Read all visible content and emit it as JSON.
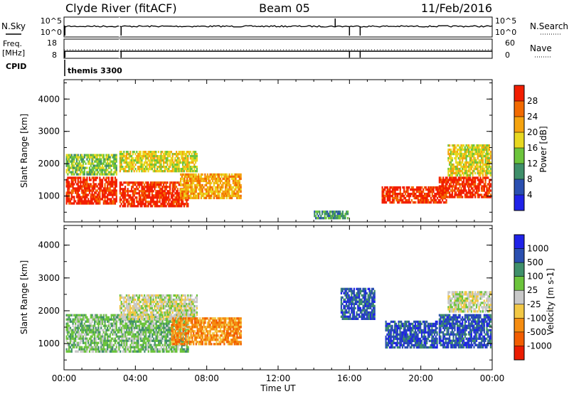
{
  "header": {
    "station": "Clyde River (fitACF)",
    "beam": "Beam 05",
    "date": "11/Feb/2016"
  },
  "strip_nsky": {
    "left_label": "N.Sky",
    "right_label": "N.Search",
    "left_tick_top": "10^5",
    "left_tick_bottom": "10^0",
    "right_tick_top": "10^5",
    "right_tick_bottom": "10^0"
  },
  "strip_freq": {
    "left_label_1": "Freq.",
    "left_label_2": "[MHz]",
    "right_label": "Nave",
    "left_tick_top": "18",
    "left_tick_bottom": "8",
    "right_tick_top": "60",
    "right_tick_bottom": "0"
  },
  "strip_cpid": {
    "left_label": "CPID",
    "annotation": "themis 3300"
  },
  "time_axis": {
    "label": "Time UT",
    "ticks": [
      "00:00",
      "04:00",
      "08:00",
      "12:00",
      "16:00",
      "20:00",
      "00:00"
    ]
  },
  "colors": {
    "power_scale": [
      "#1f22e8",
      "#2a4fb0",
      "#3f8f6a",
      "#6cc43c",
      "#e8d820",
      "#f5a30f",
      "#f26a00",
      "#f21e00"
    ],
    "velocity_scale": [
      "#ea1c00",
      "#f25d00",
      "#f58c10",
      "#f2c845",
      "#c8c8c8",
      "#6cc43c",
      "#3f8f6a",
      "#2a4fb0",
      "#1f22e8"
    ]
  },
  "chart_data": [
    {
      "type": "heatmap",
      "name": "power",
      "ylabel": "Slant Range [km]",
      "xlabel": "",
      "x_range_hours": [
        0,
        24
      ],
      "ylim": [
        200,
        4600
      ],
      "y_ticks": [
        "1000",
        "2000",
        "3000",
        "4000"
      ],
      "colorbar": {
        "label": "Power [dB]",
        "ticks": [
          "4",
          "8",
          "12",
          "16",
          "20",
          "24",
          "28"
        ]
      },
      "regions": [
        {
          "t0": 0.1,
          "t1": 3.0,
          "r0": 700,
          "r1": 1600,
          "value_db": 28
        },
        {
          "t0": 0.1,
          "t1": 3.0,
          "r0": 1600,
          "r1": 2300,
          "value_db": 12
        },
        {
          "t0": 3.1,
          "t1": 7.0,
          "r0": 650,
          "r1": 1450,
          "value_db": 28
        },
        {
          "t0": 3.1,
          "t1": 7.5,
          "r0": 1700,
          "r1": 2400,
          "value_db": 16
        },
        {
          "t0": 6.5,
          "t1": 10.0,
          "r0": 900,
          "r1": 1700,
          "value_db": 20
        },
        {
          "t0": 14.0,
          "t1": 16.0,
          "r0": 250,
          "r1": 550,
          "value_db": 8
        },
        {
          "t0": 17.8,
          "t1": 21.5,
          "r0": 750,
          "r1": 1300,
          "value_db": 28
        },
        {
          "t0": 21.0,
          "t1": 24.0,
          "r0": 900,
          "r1": 1600,
          "value_db": 28
        },
        {
          "t0": 21.5,
          "t1": 24.0,
          "r0": 1600,
          "r1": 2600,
          "value_db": 16
        }
      ]
    },
    {
      "type": "heatmap",
      "name": "velocity",
      "ylabel": "Slant Range [km]",
      "xlabel": "Time UT",
      "x_range_hours": [
        0,
        24
      ],
      "ylim": [
        200,
        4600
      ],
      "y_ticks": [
        "1000",
        "2000",
        "3000",
        "4000"
      ],
      "colorbar": {
        "label": "Velocity [m s-1]",
        "ticks": [
          "-1000",
          "-500",
          "-100",
          "-25",
          "25",
          "100",
          "500",
          "1000"
        ]
      },
      "regions": [
        {
          "t0": 0.1,
          "t1": 7.0,
          "r0": 700,
          "r1": 1900,
          "value_ms": 80
        },
        {
          "t0": 3.1,
          "t1": 7.5,
          "r0": 1700,
          "r1": 2500,
          "value_ms": 0
        },
        {
          "t0": 6.0,
          "t1": 10.0,
          "r0": 900,
          "r1": 1800,
          "value_ms": -300
        },
        {
          "t0": 15.5,
          "t1": 17.5,
          "r0": 1700,
          "r1": 2700,
          "value_ms": 600
        },
        {
          "t0": 18.0,
          "t1": 21.0,
          "r0": 800,
          "r1": 1700,
          "value_ms": 900
        },
        {
          "t0": 21.0,
          "t1": 24.0,
          "r0": 800,
          "r1": 1900,
          "value_ms": 900
        },
        {
          "t0": 21.5,
          "t1": 24.0,
          "r0": 1900,
          "r1": 2600,
          "value_ms": 0
        }
      ]
    }
  ]
}
